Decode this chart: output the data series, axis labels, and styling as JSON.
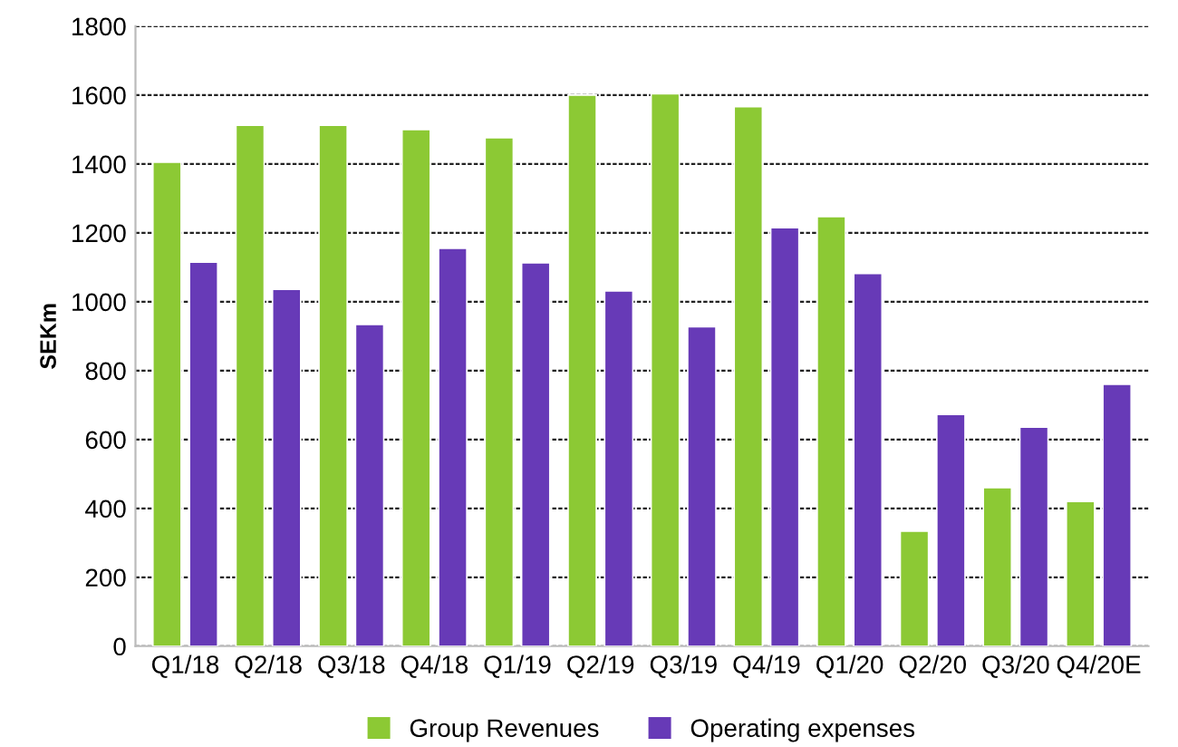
{
  "chart_data": {
    "type": "bar",
    "ylabel": "SEKm",
    "categories": [
      "Q1/18",
      "Q2/18",
      "Q3/18",
      "Q4/18",
      "Q1/19",
      "Q2/19",
      "Q3/19",
      "Q4/19",
      "Q1/20",
      "Q2/20",
      "Q3/20",
      "Q4/20E"
    ],
    "series": [
      {
        "name": "Group Revenues",
        "color": "#8cc934",
        "values": [
          1405,
          1512,
          1512,
          1500,
          1476,
          1600,
          1604,
          1566,
          1247,
          334,
          460,
          420
        ]
      },
      {
        "name": "Operating expenses",
        "color": "#673ab7",
        "values": [
          1115,
          1036,
          934,
          1155,
          1113,
          1031,
          927,
          1215,
          1082,
          673,
          636,
          760
        ]
      }
    ],
    "ylim": [
      0,
      1800
    ],
    "yticks": [
      0,
      200,
      400,
      600,
      800,
      1000,
      1200,
      1400,
      1600,
      1800
    ],
    "grid": "y",
    "legend": "bottom"
  }
}
